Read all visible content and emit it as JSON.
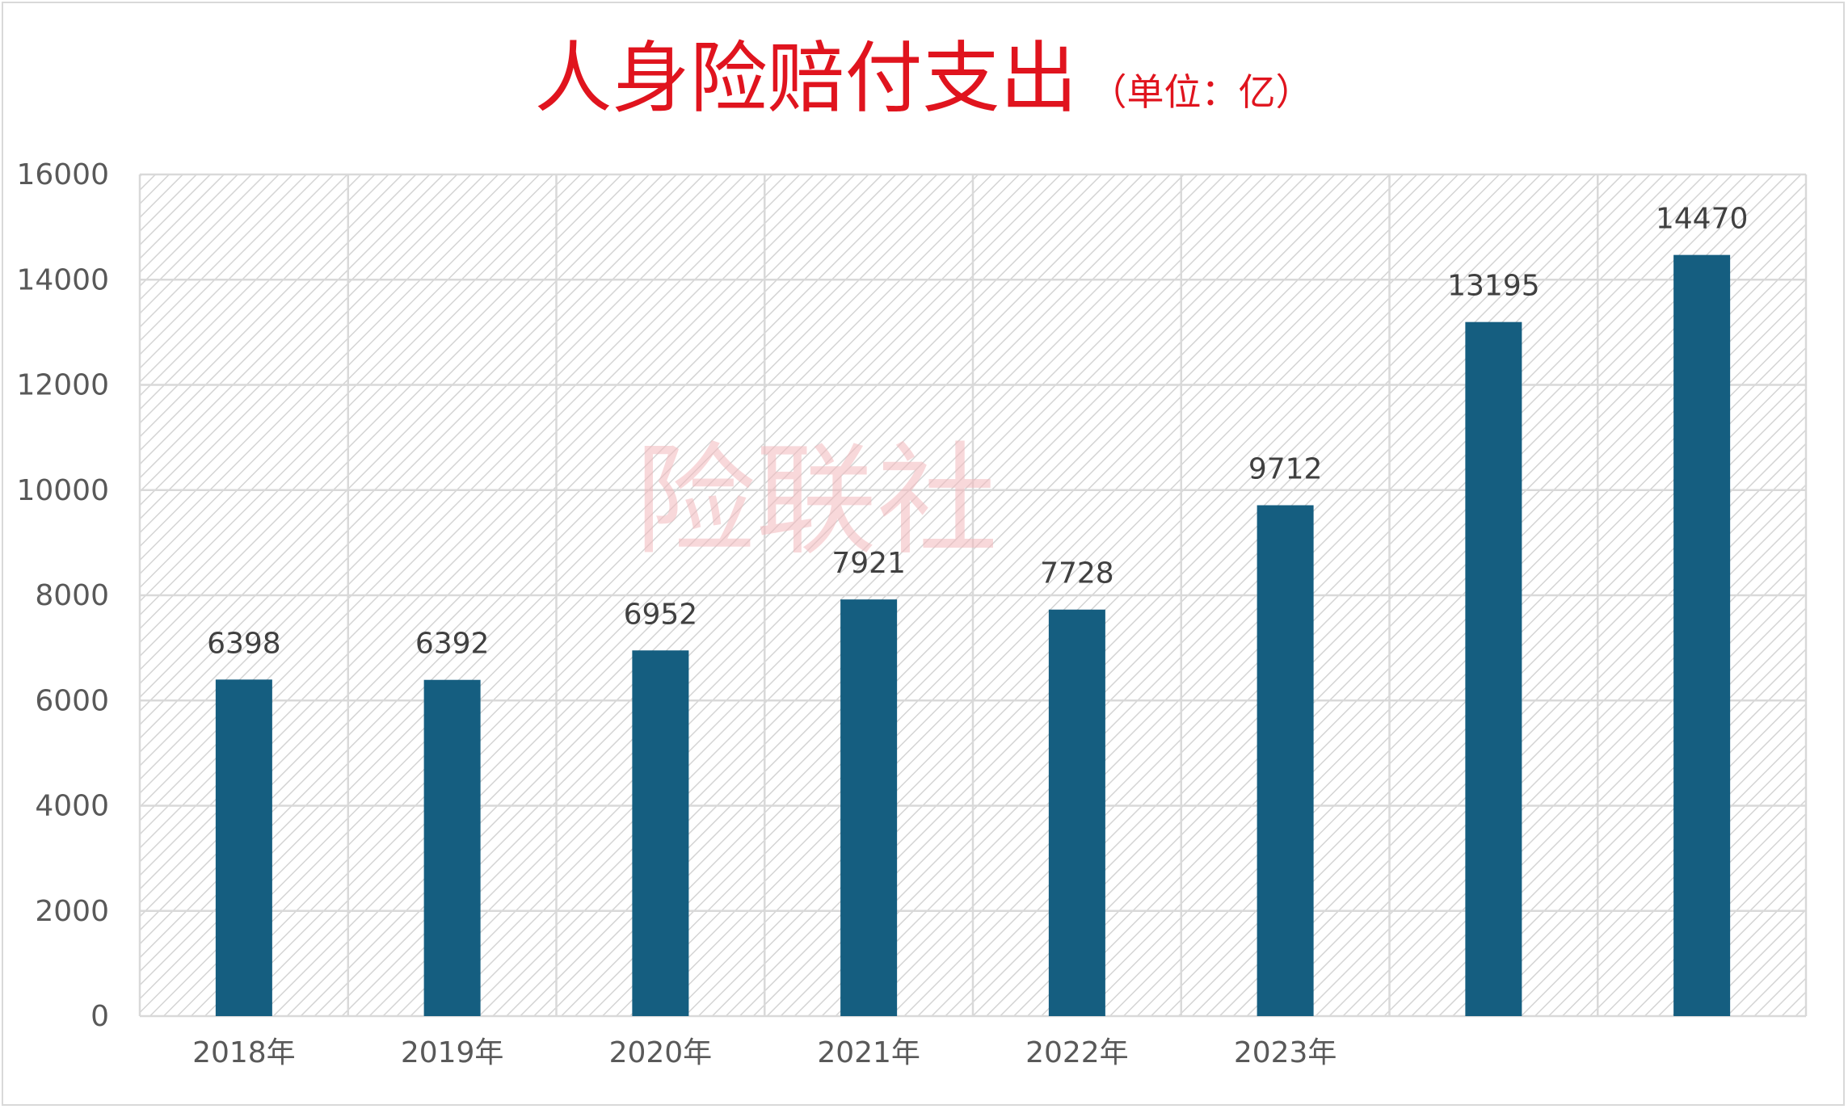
{
  "chart_data": {
    "type": "bar",
    "title": "人身险赔付支出",
    "subtitle": "（单位：亿）",
    "watermark": "险联社",
    "categories": [
      "2018年",
      "2019年",
      "2020年",
      "2021年",
      "2022年",
      "2023年",
      "",
      ""
    ],
    "values": [
      6398,
      6392,
      6952,
      7921,
      7728,
      9712,
      13195,
      14470
    ],
    "data_labels": [
      "6398",
      "6392",
      "6952",
      "7921",
      "7728",
      "9712",
      "13195",
      "14470"
    ],
    "xlabel": "",
    "ylabel": "",
    "ylim": [
      0,
      16000
    ],
    "yticks": [
      "0",
      "2000",
      "4000",
      "6000",
      "8000",
      "10000",
      "12000",
      "14000",
      "16000"
    ],
    "grid": true,
    "legend": "none",
    "bar_color": "#155e80",
    "title_color": "#e0141e"
  }
}
